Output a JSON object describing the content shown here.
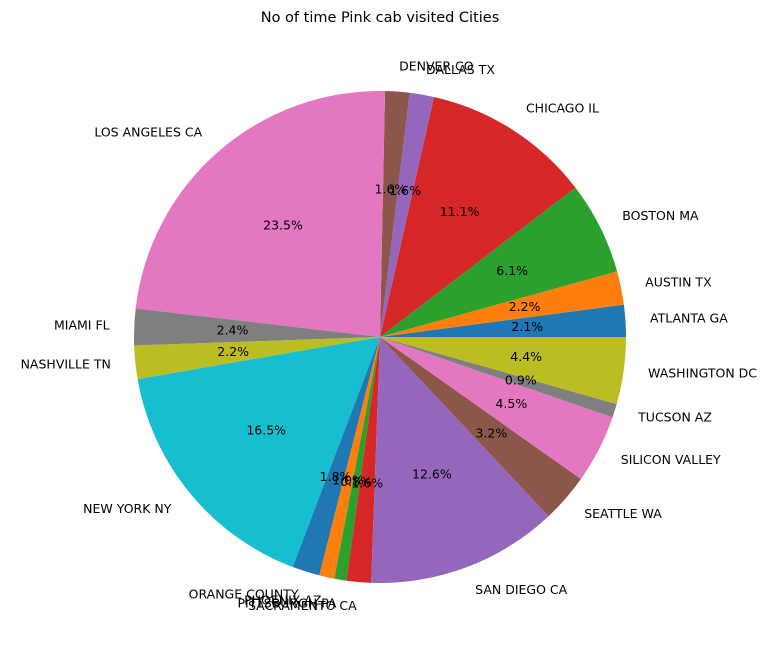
{
  "chart_data": {
    "type": "pie",
    "title": "No of time Pink cab visited Cities",
    "slices": [
      {
        "label": "ATLANTA GA",
        "value": 2.1,
        "pct_label": "2.1%",
        "color": "#1f77b4"
      },
      {
        "label": "AUSTIN TX",
        "value": 2.2,
        "pct_label": "2.2%",
        "color": "#ff7f0e"
      },
      {
        "label": "BOSTON MA",
        "value": 6.1,
        "pct_label": "6.1%",
        "color": "#2ca02c"
      },
      {
        "label": "CHICAGO IL",
        "value": 11.1,
        "pct_label": "11.1%",
        "color": "#d62728"
      },
      {
        "label": "DALLAS TX",
        "value": 1.6,
        "pct_label": "1.6%",
        "color": "#9467bd"
      },
      {
        "label": "DENVER CO",
        "value": 1.6,
        "pct_label": "1.6%",
        "color": "#8c564b"
      },
      {
        "label": "LOS ANGELES CA",
        "value": 23.5,
        "pct_label": "23.5%",
        "color": "#e377c2"
      },
      {
        "label": "MIAMI FL",
        "value": 2.4,
        "pct_label": "2.4%",
        "color": "#7f7f7f"
      },
      {
        "label": "NASHVILLE TN",
        "value": 2.2,
        "pct_label": "2.2%",
        "color": "#bcbd22"
      },
      {
        "label": "NEW YORK NY",
        "value": 16.5,
        "pct_label": "16.5%",
        "color": "#17becf"
      },
      {
        "label": "ORANGE COUNTY",
        "value": 1.8,
        "pct_label": "1.8%",
        "color": "#1f77b4"
      },
      {
        "label": "PHOENIX AZ",
        "value": 1.0,
        "pct_label": "1.0%",
        "color": "#ff7f0e"
      },
      {
        "label": "PITTSBURGH PA",
        "value": 0.8,
        "pct_label": "0.8%",
        "color": "#2ca02c"
      },
      {
        "label": "SACRAMENTO CA",
        "value": 1.6,
        "pct_label": "1.6%",
        "color": "#d62728"
      },
      {
        "label": "SAN DIEGO CA",
        "value": 12.6,
        "pct_label": "12.6%",
        "color": "#9467bd"
      },
      {
        "label": "SEATTLE WA",
        "value": 3.2,
        "pct_label": "3.2%",
        "color": "#8c564b"
      },
      {
        "label": "SILICON VALLEY",
        "value": 4.5,
        "pct_label": "4.5%",
        "color": "#e377c2"
      },
      {
        "label": "TUCSON AZ",
        "value": 0.9,
        "pct_label": "0.9%",
        "color": "#7f7f7f"
      },
      {
        "label": "WASHINGTON DC",
        "value": 4.4,
        "pct_label": "4.4%",
        "color": "#bcbd22"
      }
    ],
    "start_angle_deg": 0,
    "direction": "counterclockwise",
    "legend": "none"
  }
}
